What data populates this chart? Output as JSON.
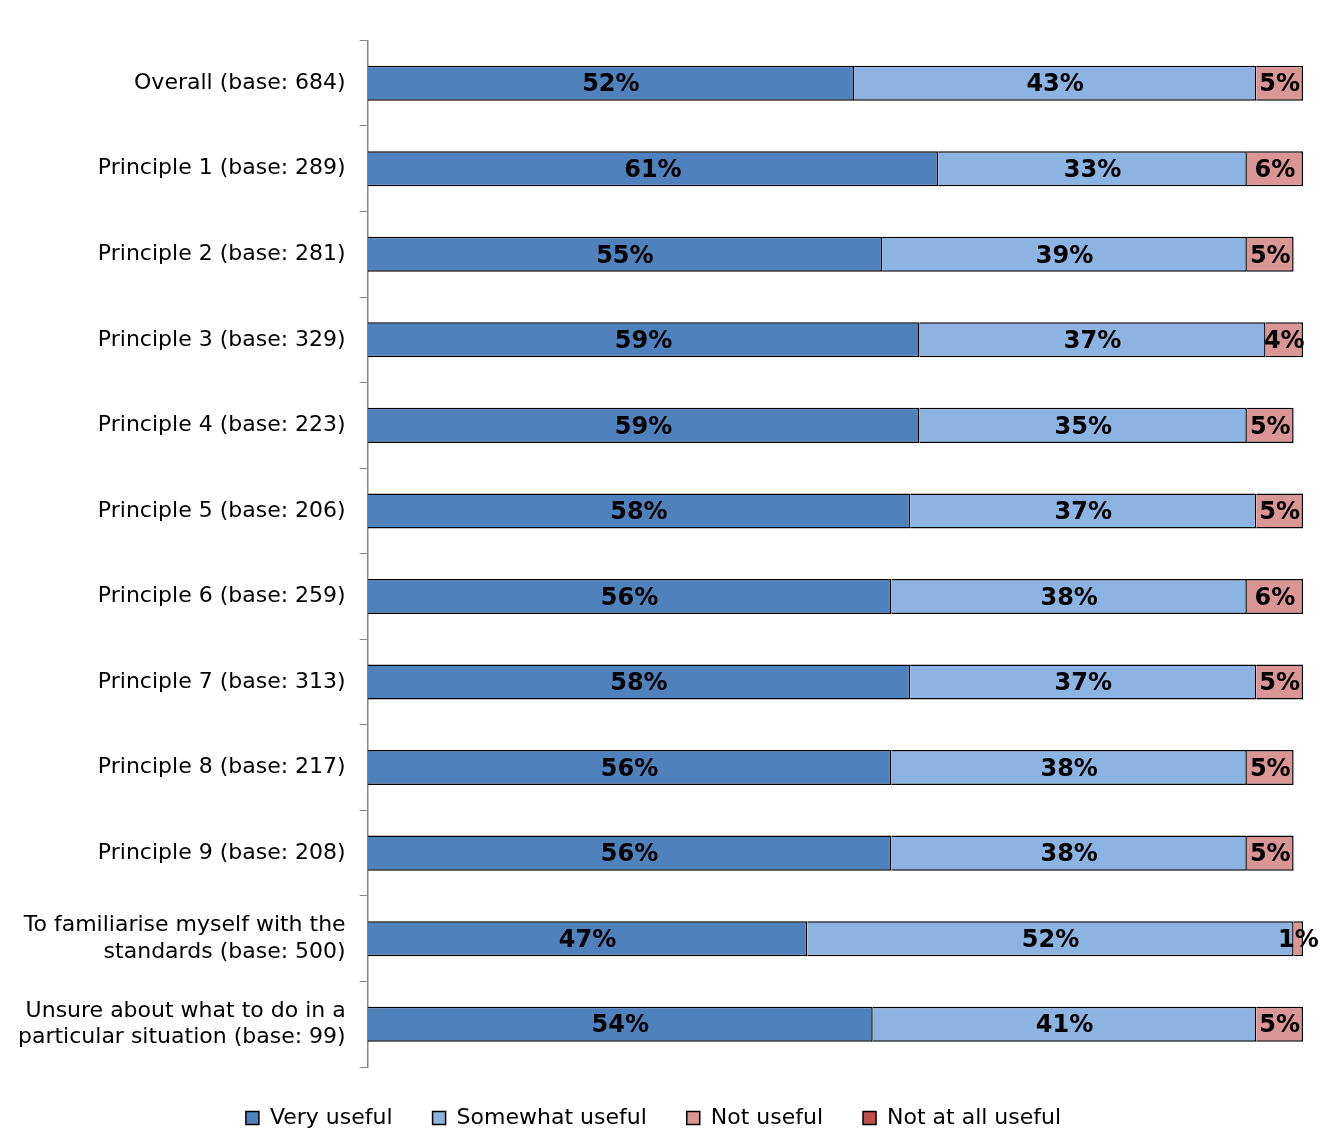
{
  "chart_data": {
    "type": "bar",
    "orientation": "horizontal",
    "stacked": true,
    "legend": "bottom",
    "grid": false,
    "tick_labels": "y",
    "xlim": [
      0,
      100
    ],
    "categories": [
      "Overall (base: 684)",
      "Principle 1 (base: 289)",
      "Principle 2 (base: 281)",
      "Principle 3 (base: 329)",
      "Principle 4 (base: 223)",
      "Principle 5 (base: 206)",
      "Principle 6 (base: 259)",
      "Principle 7 (base: 313)",
      "Principle 8 (base: 217)",
      "Principle 9 (base: 208)",
      "To familiarise myself with the standards (base: 500)",
      "Unsure about what to do in a particular situation (base: 99)"
    ],
    "series": [
      {
        "name": "Very useful",
        "color": "#4f81bd",
        "values": [
          52,
          61,
          55,
          59,
          59,
          58,
          56,
          58,
          56,
          56,
          47,
          54
        ],
        "value_labels": [
          "52%",
          "61%",
          "55%",
          "59%",
          "59%",
          "58%",
          "56%",
          "58%",
          "56%",
          "56%",
          "47%",
          "54%"
        ]
      },
      {
        "name": "Somewhat useful",
        "color": "#8db3e2",
        "values": [
          43,
          33,
          39,
          37,
          35,
          37,
          38,
          37,
          38,
          38,
          52,
          41
        ],
        "value_labels": [
          "43%",
          "33%",
          "39%",
          "37%",
          "35%",
          "37%",
          "38%",
          "37%",
          "38%",
          "38%",
          "52%",
          "41%"
        ]
      },
      {
        "name": "Not useful",
        "color": "#da9694",
        "values": [
          5,
          6,
          5,
          4,
          5,
          5,
          6,
          5,
          5,
          5,
          1,
          5
        ],
        "value_labels": [
          "5%",
          "6%",
          "5%",
          "4%",
          "5%",
          "5%",
          "6%",
          "5%",
          "5%",
          "5%",
          "1%",
          "5%"
        ]
      },
      {
        "name": "Not at all useful",
        "color": "#c0504d",
        "values": [
          null,
          null,
          null,
          null,
          null,
          null,
          null,
          null,
          null,
          null,
          null,
          null
        ],
        "value_labels": [
          null,
          null,
          null,
          null,
          null,
          null,
          null,
          null,
          null,
          null,
          null,
          null
        ]
      }
    ]
  }
}
